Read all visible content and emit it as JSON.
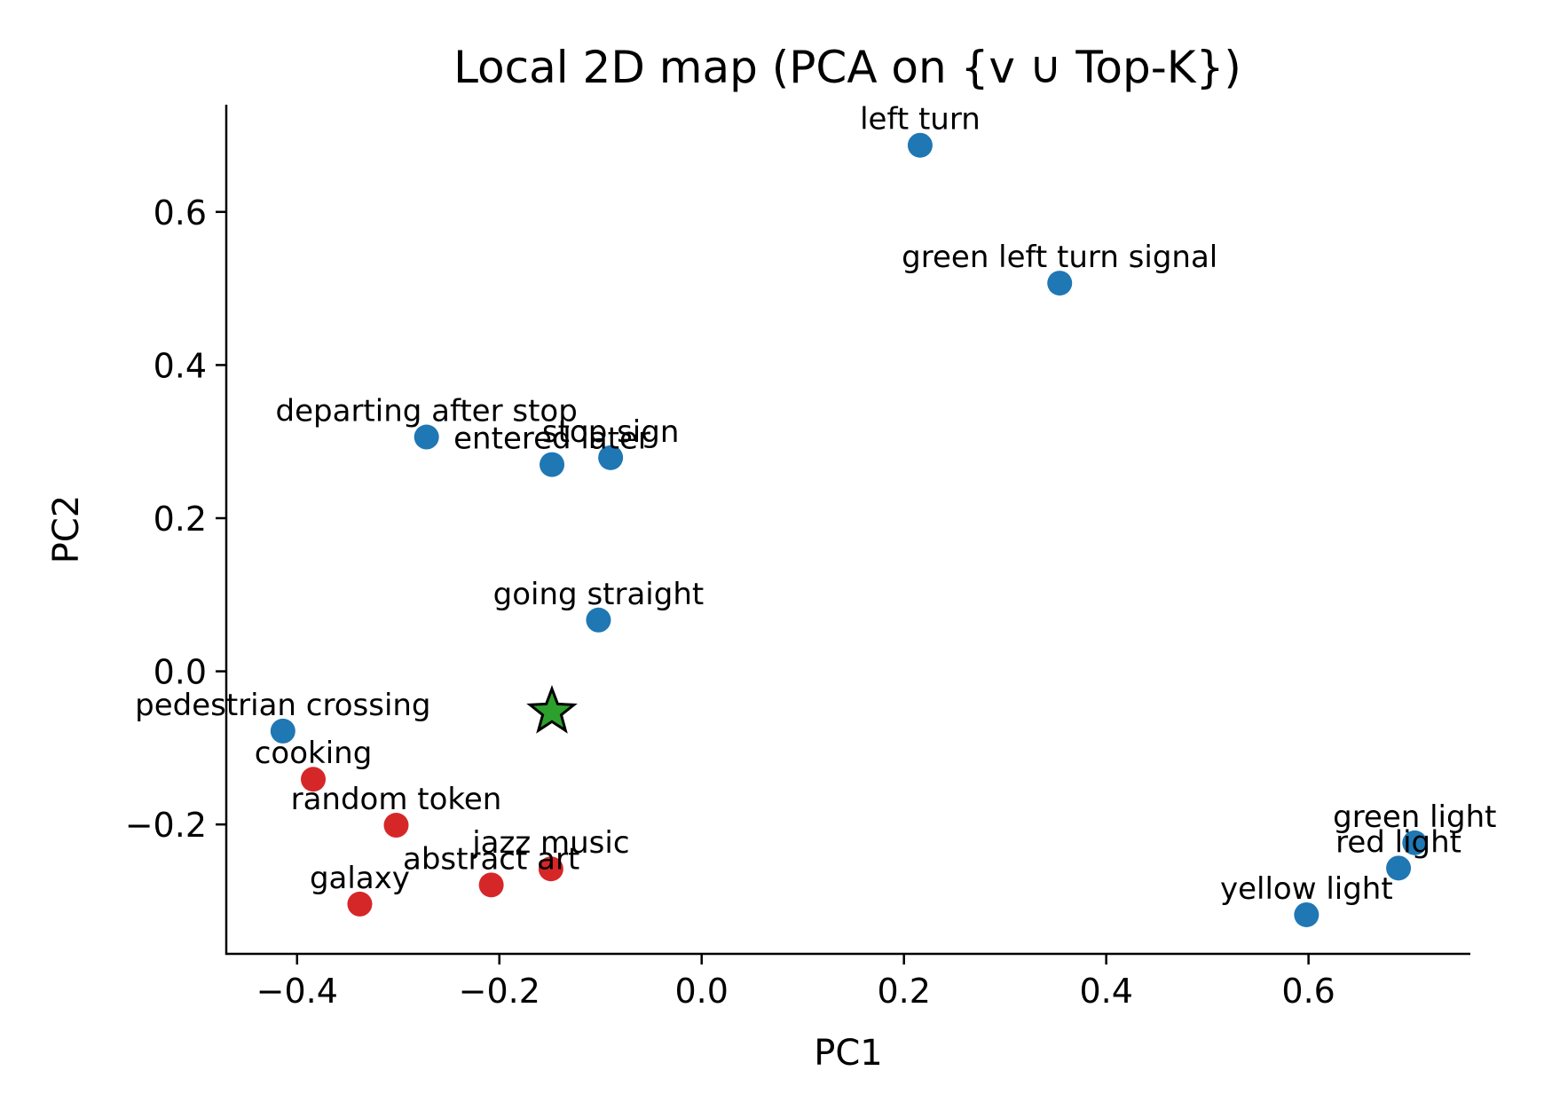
{
  "chart_data": {
    "type": "scatter",
    "title": "Local 2D map (PCA on {v ∪ Top-K})",
    "xlabel": "PC1",
    "ylabel": "PC2",
    "xlim": [
      -0.47,
      0.76
    ],
    "ylim": [
      -0.369,
      0.74
    ],
    "xticks": [
      -0.4,
      -0.2,
      0.0,
      0.2,
      0.4,
      0.6
    ],
    "xtick_labels": [
      "−0.4",
      "−0.2",
      "0.0",
      "0.2",
      "0.4",
      "0.6"
    ],
    "yticks": [
      -0.2,
      0.0,
      0.2,
      0.4,
      0.6
    ],
    "ytick_labels": [
      "−0.2",
      "0.0",
      "0.2",
      "0.4",
      "0.6"
    ],
    "grid": false,
    "colors": {
      "related": "#1f77b4",
      "unrelated": "#d62728",
      "query": "#2ca02c"
    },
    "query_point": {
      "x": -0.148,
      "y": -0.053,
      "marker": "star"
    },
    "points": [
      {
        "label": "left turn",
        "x": 0.216,
        "y": 0.687,
        "group": "related"
      },
      {
        "label": "green left turn signal",
        "x": 0.354,
        "y": 0.507,
        "group": "related"
      },
      {
        "label": "departing after stop",
        "x": -0.272,
        "y": 0.306,
        "group": "related"
      },
      {
        "label": "stop sign",
        "x": -0.09,
        "y": 0.279,
        "group": "related"
      },
      {
        "label": "entered later",
        "x": -0.148,
        "y": 0.27,
        "group": "related"
      },
      {
        "label": "going straight",
        "x": -0.102,
        "y": 0.067,
        "group": "related"
      },
      {
        "label": "pedestrian crossing",
        "x": -0.414,
        "y": -0.078,
        "group": "related"
      },
      {
        "label": "green light",
        "x": 0.705,
        "y": -0.224,
        "group": "related"
      },
      {
        "label": "red light",
        "x": 0.689,
        "y": -0.257,
        "group": "related"
      },
      {
        "label": "yellow light",
        "x": 0.598,
        "y": -0.318,
        "group": "related"
      },
      {
        "label": "cooking",
        "x": -0.384,
        "y": -0.141,
        "group": "unrelated"
      },
      {
        "label": "random token",
        "x": -0.302,
        "y": -0.201,
        "group": "unrelated"
      },
      {
        "label": "jazz music",
        "x": -0.149,
        "y": -0.258,
        "group": "unrelated"
      },
      {
        "label": "abstract art",
        "x": -0.208,
        "y": -0.279,
        "group": "unrelated"
      },
      {
        "label": "galaxy",
        "x": -0.338,
        "y": -0.304,
        "group": "unrelated"
      }
    ]
  }
}
